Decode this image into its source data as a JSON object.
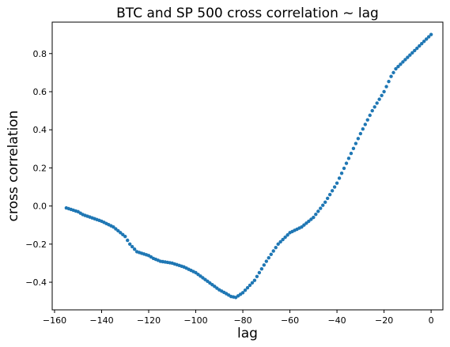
{
  "chart_data": {
    "type": "scatter",
    "title": "BTC and SP 500 cross correlation ~ lag",
    "xlabel": "lag",
    "ylabel": "cross correlation",
    "xlim": [
      -161,
      5
    ],
    "ylim": [
      -0.545,
      0.965
    ],
    "xticks": [
      -160,
      -140,
      -120,
      -100,
      -80,
      -60,
      -40,
      -20,
      0
    ],
    "yticks": [
      -0.4,
      -0.2,
      0.0,
      0.2,
      0.4,
      0.6,
      0.8
    ],
    "xtick_labels": [
      "−160",
      "−140",
      "−120",
      "−100",
      "−80",
      "−60",
      "−40",
      "−20",
      "0"
    ],
    "ytick_labels": [
      "−0.4",
      "−0.2",
      "0.0",
      "0.2",
      "0.4",
      "0.6",
      "0.8"
    ],
    "grid": false,
    "marker_color": "#1f77b4",
    "anchors": [
      [
        -155,
        -0.01
      ],
      [
        -150,
        -0.03
      ],
      [
        -148,
        -0.045
      ],
      [
        -140,
        -0.08
      ],
      [
        -135,
        -0.11
      ],
      [
        -130,
        -0.16
      ],
      [
        -128,
        -0.2
      ],
      [
        -125,
        -0.24
      ],
      [
        -120,
        -0.26
      ],
      [
        -118,
        -0.275
      ],
      [
        -115,
        -0.29
      ],
      [
        -110,
        -0.3
      ],
      [
        -105,
        -0.32
      ],
      [
        -100,
        -0.35
      ],
      [
        -95,
        -0.395
      ],
      [
        -90,
        -0.44
      ],
      [
        -87,
        -0.46
      ],
      [
        -85,
        -0.475
      ],
      [
        -83,
        -0.48
      ],
      [
        -80,
        -0.455
      ],
      [
        -75,
        -0.39
      ],
      [
        -70,
        -0.29
      ],
      [
        -65,
        -0.2
      ],
      [
        -60,
        -0.14
      ],
      [
        -55,
        -0.11
      ],
      [
        -50,
        -0.06
      ],
      [
        -45,
        0.02
      ],
      [
        -40,
        0.12
      ],
      [
        -35,
        0.25
      ],
      [
        -30,
        0.38
      ],
      [
        -25,
        0.5
      ],
      [
        -20,
        0.6
      ],
      [
        -17,
        0.68
      ],
      [
        -15,
        0.72
      ],
      [
        -10,
        0.78
      ],
      [
        -5,
        0.84
      ],
      [
        0,
        0.9
      ]
    ],
    "x_range": [
      -155,
      0
    ]
  }
}
